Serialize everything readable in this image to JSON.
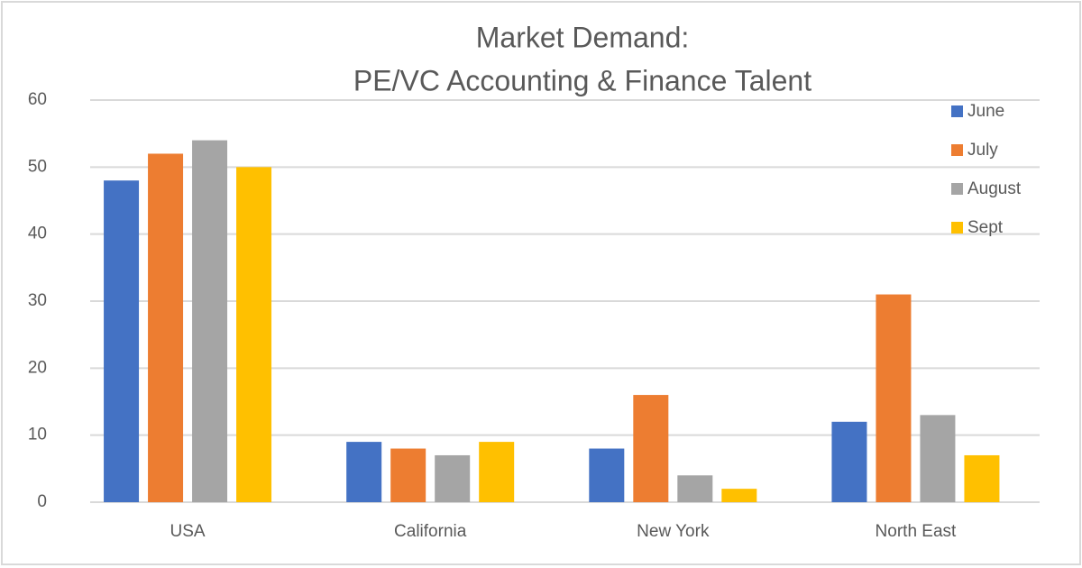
{
  "chart_data": {
    "type": "bar",
    "title": [
      "Market Demand:",
      "PE/VC Accounting & Finance Talent"
    ],
    "categories": [
      "USA",
      "California",
      "New York",
      "North East"
    ],
    "series": [
      {
        "name": "June",
        "color": "#4472c4",
        "values": [
          48,
          9,
          8,
          12
        ]
      },
      {
        "name": "July",
        "color": "#ed7d31",
        "values": [
          52,
          8,
          16,
          31
        ]
      },
      {
        "name": "August",
        "color": "#a5a5a5",
        "values": [
          54,
          7,
          4,
          13
        ]
      },
      {
        "name": "Sept",
        "color": "#ffc000",
        "values": [
          50,
          9,
          2,
          7
        ]
      }
    ],
    "ylim": [
      0,
      60
    ],
    "yticks": [
      0,
      10,
      20,
      30,
      40,
      50,
      60
    ],
    "grid": true,
    "legend": "right"
  }
}
